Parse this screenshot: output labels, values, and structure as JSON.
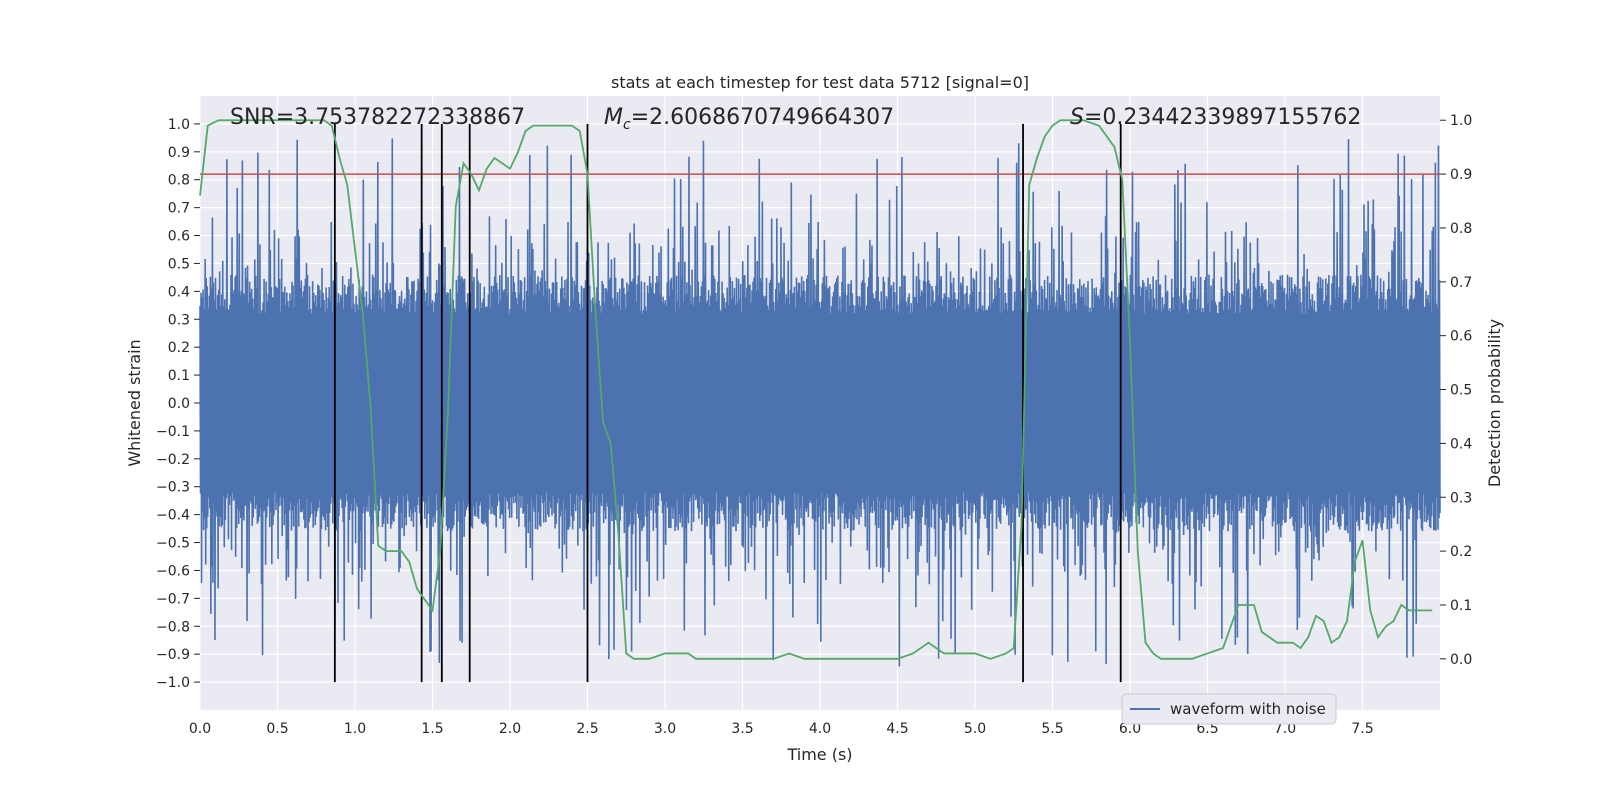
{
  "chart_data": {
    "type": "line",
    "title": "stats at each timestep for test data 5712 [signal=0]",
    "xlabel": "Time (s)",
    "ylabel": "Whitened strain",
    "ylabel_right": "Detection probability",
    "xlim": [
      0.0,
      8.0
    ],
    "ylim": [
      -1.1,
      1.1
    ],
    "ylim_right": [
      -0.095,
      1.045
    ],
    "x_ticks": [
      "0.0",
      "0.5",
      "1.0",
      "1.5",
      "2.0",
      "2.5",
      "3.0",
      "3.5",
      "4.0",
      "4.5",
      "5.0",
      "5.5",
      "6.0",
      "6.5",
      "7.0",
      "7.5"
    ],
    "y_ticks": [
      "1.0",
      "0.9",
      "0.8",
      "0.7",
      "0.6",
      "0.5",
      "0.4",
      "0.3",
      "0.2",
      "0.1",
      "0.0",
      "−0.1",
      "−0.2",
      "−0.3",
      "−0.4",
      "−0.5",
      "−0.6",
      "−0.7",
      "−0.8",
      "−0.9",
      "−1.0"
    ],
    "y_ticks_right": [
      "1.0",
      "0.9",
      "0.8",
      "0.7",
      "0.6",
      "0.5",
      "0.4",
      "0.3",
      "0.2",
      "0.1",
      "0.0"
    ],
    "annotations": {
      "snr": "SNR=3.753782272338867",
      "mc_symbol": "M",
      "mc_sub": "c",
      "mc_value": "=2.6068670749664307",
      "s_symbol": "S",
      "s_value": "=0.23442339897155762"
    },
    "threshold": {
      "value": 0.9,
      "axis": "right",
      "color": "#c44e52"
    },
    "vertical_markers": [
      0.87,
      1.43,
      1.56,
      1.74,
      2.5,
      5.31,
      5.94
    ],
    "legend": {
      "label": "waveform with noise",
      "position": "lower-right"
    },
    "series": [
      {
        "name": "waveform with noise",
        "color": "#4c72b0",
        "kind": "whitened strain noise, dense band roughly ±0.4 with spikes up to ±0.9",
        "duration": 8.0,
        "n_samples": 2400
      },
      {
        "name": "detection probability",
        "color": "#55a868",
        "axis": "right",
        "x": [
          0.0,
          0.05,
          0.12,
          0.2,
          0.3,
          0.4,
          0.5,
          0.6,
          0.7,
          0.8,
          0.85,
          0.9,
          0.95,
          1.0,
          1.05,
          1.1,
          1.15,
          1.2,
          1.25,
          1.3,
          1.35,
          1.4,
          1.45,
          1.5,
          1.55,
          1.6,
          1.65,
          1.7,
          1.75,
          1.8,
          1.85,
          1.9,
          1.95,
          2.0,
          2.05,
          2.1,
          2.15,
          2.2,
          2.3,
          2.4,
          2.45,
          2.5,
          2.55,
          2.6,
          2.65,
          2.7,
          2.75,
          2.8,
          2.9,
          3.0,
          3.05,
          3.1,
          3.15,
          3.2,
          3.3,
          3.5,
          3.7,
          3.8,
          3.9,
          4.0,
          4.1,
          4.2,
          4.3,
          4.4,
          4.5,
          4.6,
          4.7,
          4.8,
          4.9,
          5.0,
          5.1,
          5.2,
          5.25,
          5.3,
          5.35,
          5.4,
          5.45,
          5.5,
          5.55,
          5.6,
          5.7,
          5.8,
          5.85,
          5.9,
          5.95,
          6.0,
          6.05,
          6.1,
          6.15,
          6.2,
          6.3,
          6.4,
          6.5,
          6.6,
          6.7,
          6.8,
          6.85,
          6.9,
          6.95,
          7.0,
          7.05,
          7.1,
          7.15,
          7.2,
          7.25,
          7.3,
          7.35,
          7.4,
          7.45,
          7.5,
          7.55,
          7.6,
          7.65,
          7.7,
          7.75,
          7.8,
          7.85,
          7.9,
          7.95
        ],
        "y": [
          0.86,
          0.99,
          1.0,
          1.0,
          1.0,
          1.0,
          1.0,
          1.0,
          1.0,
          1.0,
          0.99,
          0.93,
          0.88,
          0.76,
          0.64,
          0.47,
          0.21,
          0.2,
          0.2,
          0.2,
          0.18,
          0.13,
          0.11,
          0.09,
          0.2,
          0.46,
          0.84,
          0.92,
          0.9,
          0.87,
          0.91,
          0.93,
          0.92,
          0.91,
          0.94,
          0.98,
          0.99,
          0.99,
          0.99,
          0.99,
          0.98,
          0.9,
          0.65,
          0.44,
          0.4,
          0.23,
          0.01,
          0.0,
          0.0,
          0.01,
          0.01,
          0.01,
          0.01,
          0.0,
          0.0,
          0.0,
          0.0,
          0.01,
          0.0,
          0.0,
          0.0,
          0.0,
          0.0,
          0.0,
          0.0,
          0.01,
          0.03,
          0.01,
          0.01,
          0.01,
          0.0,
          0.01,
          0.02,
          0.25,
          0.88,
          0.93,
          0.97,
          0.99,
          1.0,
          1.0,
          1.0,
          0.99,
          0.97,
          0.95,
          0.89,
          0.59,
          0.2,
          0.03,
          0.01,
          0.0,
          0.0,
          0.0,
          0.01,
          0.02,
          0.1,
          0.1,
          0.05,
          0.04,
          0.03,
          0.03,
          0.03,
          0.02,
          0.04,
          0.08,
          0.07,
          0.03,
          0.04,
          0.07,
          0.18,
          0.22,
          0.09,
          0.04,
          0.06,
          0.07,
          0.1,
          0.09,
          0.09,
          0.09,
          0.09
        ]
      }
    ]
  }
}
